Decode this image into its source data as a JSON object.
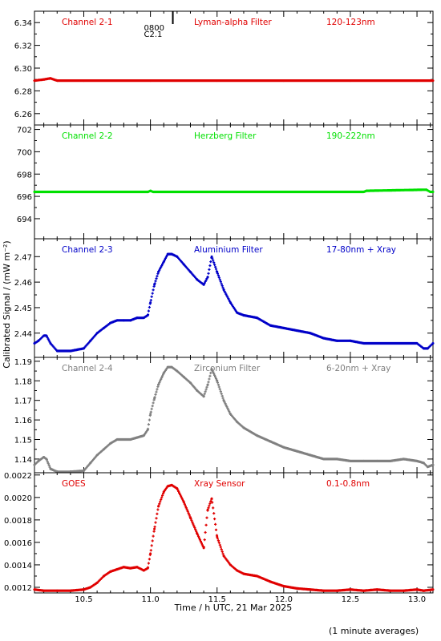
{
  "chart_data": {
    "type": "scatter",
    "xlabel": "Time / h UTC, 21 Mar 2025",
    "ylabel": "Calibrated Signal / (mW m⁻²)",
    "footnote": "(1 minute averages)",
    "xlim": [
      10.13,
      13.12
    ],
    "x_ticks": [
      10.5,
      11.0,
      11.5,
      12.0,
      12.5,
      13.0
    ],
    "x_tick_labels": [
      "10.5",
      "11.0",
      "11.5",
      "12.0",
      "12.5",
      "13.0"
    ],
    "grid": false,
    "marker_note": {
      "x": 11.15,
      "label_top": "0800",
      "label_bottom": "C2.1"
    },
    "panels": [
      {
        "id": "ch2-1",
        "labels": [
          "Channel 2-1",
          "Lyman-alpha Filter",
          "120-123nm"
        ],
        "color": "#e00000",
        "ylim": [
          6.25,
          6.35
        ],
        "y_ticks": [
          6.26,
          6.28,
          6.3,
          6.32,
          6.34
        ],
        "y_tick_labels": [
          "6.26",
          "6.28",
          "6.30",
          "6.32",
          "6.34"
        ],
        "series": [
          {
            "x": [
              10.13,
              10.2,
              10.25,
              10.3,
              10.5,
              11.0,
              11.5,
              12.0,
              12.5,
              13.0,
              13.12
            ],
            "y": [
              6.289,
              6.29,
              6.291,
              6.289,
              6.289,
              6.289,
              6.289,
              6.289,
              6.289,
              6.289,
              6.289
            ]
          }
        ]
      },
      {
        "id": "ch2-2",
        "labels": [
          "Channel 2-2",
          "Herzberg Filter",
          "190-222nm"
        ],
        "color": "#00e000",
        "ylim": [
          692.2,
          702.4
        ],
        "y_ticks": [
          694,
          696,
          698,
          700,
          702
        ],
        "y_tick_labels": [
          "694",
          "696",
          "698",
          "700",
          "702"
        ],
        "series": [
          {
            "x": [
              10.13,
              10.5,
              10.98,
              11.0,
              11.02,
              11.5,
              12.0,
              12.6,
              12.62,
              13.07,
              13.1,
              13.12
            ],
            "y": [
              696.4,
              696.4,
              696.4,
              696.5,
              696.4,
              696.4,
              696.4,
              696.4,
              696.5,
              696.6,
              696.4,
              696.4
            ]
          }
        ]
      },
      {
        "id": "ch2-3",
        "labels": [
          "Channel 2-3",
          "Aluminium Filter",
          "17-80nm + Xray"
        ],
        "color": "#0000c8",
        "ylim": [
          2.4305,
          2.477
        ],
        "y_ticks": [
          2.44,
          2.45,
          2.46,
          2.47
        ],
        "y_tick_labels": [
          "2.44",
          "2.45",
          "2.46",
          "2.47"
        ],
        "series": [
          {
            "x": [
              10.13,
              10.16,
              10.2,
              10.22,
              10.25,
              10.3,
              10.4,
              10.5,
              10.55,
              10.6,
              10.65,
              10.7,
              10.75,
              10.8,
              10.85,
              10.9,
              10.95,
              10.98,
              11.0,
              11.03,
              11.06,
              11.1,
              11.13,
              11.16,
              11.2,
              11.25,
              11.3,
              11.35,
              11.4,
              11.43,
              11.46,
              11.5,
              11.55,
              11.6,
              11.65,
              11.7,
              11.8,
              11.9,
              12.0,
              12.1,
              12.2,
              12.3,
              12.4,
              12.5,
              12.6,
              12.7,
              12.8,
              12.9,
              13.0,
              13.05,
              13.08,
              13.12
            ],
            "y": [
              2.436,
              2.437,
              2.439,
              2.439,
              2.436,
              2.433,
              2.433,
              2.434,
              2.437,
              2.44,
              2.442,
              2.444,
              2.445,
              2.445,
              2.445,
              2.446,
              2.446,
              2.447,
              2.452,
              2.459,
              2.464,
              2.468,
              2.471,
              2.471,
              2.47,
              2.467,
              2.464,
              2.461,
              2.459,
              2.462,
              2.47,
              2.464,
              2.457,
              2.452,
              2.448,
              2.447,
              2.446,
              2.443,
              2.442,
              2.441,
              2.44,
              2.438,
              2.437,
              2.437,
              2.436,
              2.436,
              2.436,
              2.436,
              2.436,
              2.434,
              2.434,
              2.436
            ]
          }
        ]
      },
      {
        "id": "ch2-4",
        "labels": [
          "Channel 2-4",
          "Zirconium Filter",
          "6-20nm + Xray"
        ],
        "color": "#808080",
        "ylim": [
          1.133,
          1.192
        ],
        "y_ticks": [
          1.14,
          1.15,
          1.16,
          1.17,
          1.18,
          1.19
        ],
        "y_tick_labels": [
          "1.14",
          "1.15",
          "1.16",
          "1.17",
          "1.18",
          "1.19"
        ],
        "series": [
          {
            "x": [
              10.13,
              10.16,
              10.2,
              10.22,
              10.25,
              10.3,
              10.4,
              10.5,
              10.55,
              10.6,
              10.65,
              10.7,
              10.75,
              10.8,
              10.85,
              10.9,
              10.95,
              10.98,
              11.0,
              11.03,
              11.06,
              11.1,
              11.13,
              11.16,
              11.2,
              11.25,
              11.3,
              11.35,
              11.4,
              11.43,
              11.46,
              11.5,
              11.55,
              11.6,
              11.65,
              11.7,
              11.8,
              11.9,
              12.0,
              12.1,
              12.2,
              12.3,
              12.4,
              12.5,
              12.6,
              12.7,
              12.8,
              12.9,
              13.0,
              13.05,
              13.08,
              13.12
            ],
            "y": [
              1.137,
              1.139,
              1.141,
              1.14,
              1.135,
              1.1335,
              1.1335,
              1.134,
              1.138,
              1.142,
              1.145,
              1.148,
              1.15,
              1.15,
              1.15,
              1.151,
              1.152,
              1.155,
              1.163,
              1.171,
              1.178,
              1.184,
              1.187,
              1.187,
              1.185,
              1.182,
              1.179,
              1.175,
              1.172,
              1.178,
              1.186,
              1.18,
              1.17,
              1.163,
              1.159,
              1.156,
              1.152,
              1.149,
              1.146,
              1.144,
              1.142,
              1.14,
              1.14,
              1.139,
              1.139,
              1.139,
              1.139,
              1.14,
              1.139,
              1.138,
              1.136,
              1.137
            ]
          }
        ]
      },
      {
        "id": "goes",
        "labels": [
          "GOES",
          "Xray Sensor",
          "0.1-0.8nm"
        ],
        "color": "#e00000",
        "ylim": [
          0.00115,
          0.00222
        ],
        "y_ticks": [
          0.0012,
          0.0014,
          0.0016,
          0.0018,
          0.002,
          0.0022
        ],
        "y_tick_labels": [
          "0.0012",
          "0.0014",
          "0.0016",
          "0.0018",
          "0.0020",
          "0.0022"
        ],
        "series": [
          {
            "x": [
              10.13,
              10.2,
              10.3,
              10.4,
              10.5,
              10.55,
              10.6,
              10.65,
              10.7,
              10.75,
              10.8,
              10.85,
              10.9,
              10.95,
              10.98,
              11.0,
              11.03,
              11.06,
              11.1,
              11.13,
              11.16,
              11.2,
              11.25,
              11.3,
              11.35,
              11.4,
              11.43,
              11.46,
              11.5,
              11.55,
              11.6,
              11.65,
              11.7,
              11.8,
              11.9,
              12.0,
              12.1,
              12.2,
              12.3,
              12.4,
              12.5,
              12.6,
              12.7,
              12.8,
              12.9,
              13.0,
              13.05,
              13.12
            ],
            "y": [
              0.00118,
              0.00117,
              0.00117,
              0.00117,
              0.00118,
              0.0012,
              0.00124,
              0.0013,
              0.00134,
              0.00136,
              0.00138,
              0.00137,
              0.00138,
              0.00135,
              0.00137,
              0.0015,
              0.00172,
              0.00192,
              0.00205,
              0.0021,
              0.00211,
              0.00208,
              0.00196,
              0.00182,
              0.00168,
              0.00155,
              0.00189,
              0.00199,
              0.00165,
              0.00148,
              0.0014,
              0.00135,
              0.00132,
              0.0013,
              0.00125,
              0.00121,
              0.00119,
              0.00118,
              0.00117,
              0.00117,
              0.00118,
              0.00117,
              0.00118,
              0.00117,
              0.00117,
              0.00118,
              0.00117,
              0.00118
            ]
          }
        ]
      }
    ]
  }
}
